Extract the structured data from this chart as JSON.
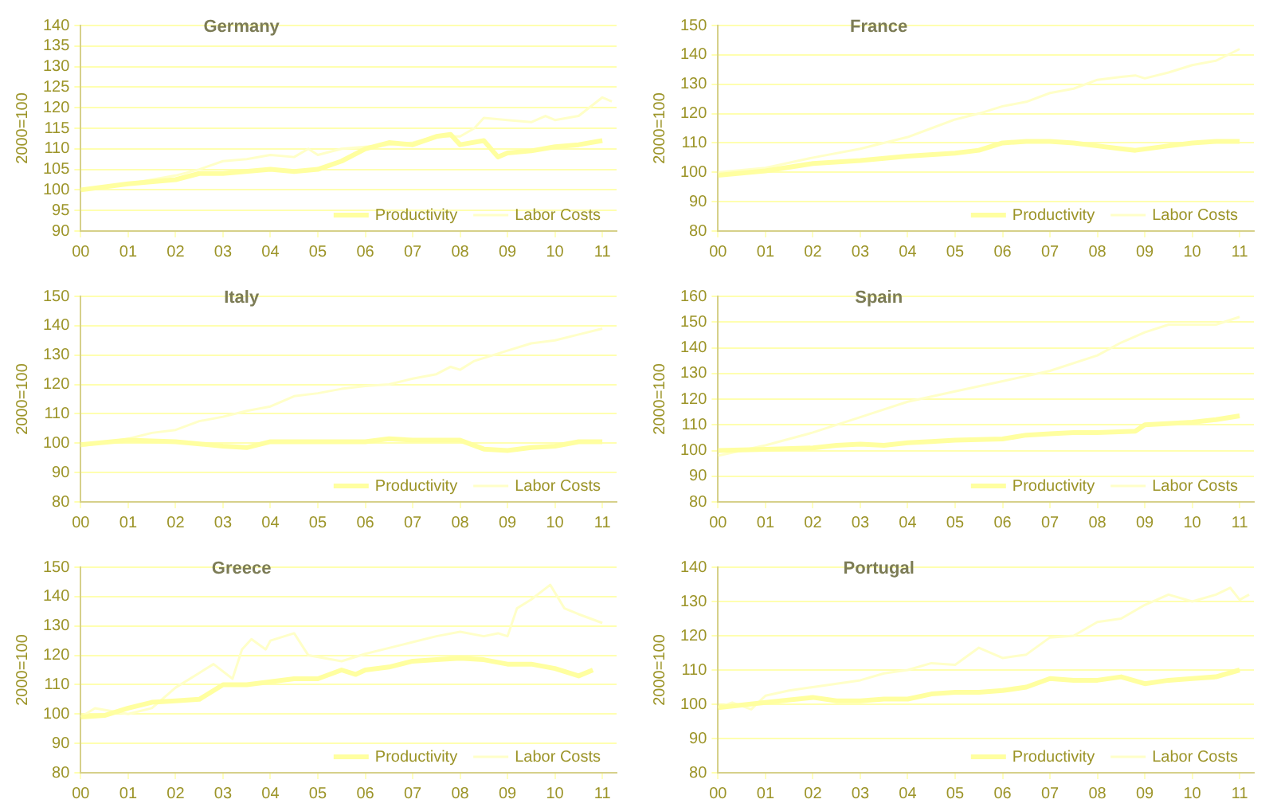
{
  "chart_data": [
    {
      "type": "line",
      "title": "Germany",
      "ylabel": "2000=100",
      "xlim": [
        0,
        11.3
      ],
      "ylim": [
        90,
        140
      ],
      "yticks": [
        90,
        95,
        100,
        105,
        110,
        115,
        120,
        125,
        130,
        135,
        140
      ],
      "xticks": [
        {
          "value": 0,
          "label": "00"
        },
        {
          "value": 1,
          "label": "01"
        },
        {
          "value": 2,
          "label": "02"
        },
        {
          "value": 3,
          "label": "03"
        },
        {
          "value": 4,
          "label": "04"
        },
        {
          "value": 5,
          "label": "05"
        },
        {
          "value": 6,
          "label": "06"
        },
        {
          "value": 7,
          "label": "07"
        },
        {
          "value": 8,
          "label": "08"
        },
        {
          "value": 9,
          "label": "09"
        },
        {
          "value": 10,
          "label": "10"
        },
        {
          "value": 11,
          "label": "11"
        }
      ],
      "grid": "y",
      "legend": "bottom right",
      "series": [
        {
          "name": "Productivity",
          "color": "#ffffa0",
          "x": [
            0,
            1,
            2,
            2.5,
            3,
            4,
            4.5,
            5,
            5.5,
            6,
            6.5,
            7,
            7.5,
            7.8,
            8,
            8.5,
            8.8,
            9,
            9.5,
            10,
            10.5,
            11
          ],
          "values": [
            100,
            101.5,
            102.5,
            104,
            104,
            105,
            104.5,
            105,
            107,
            110,
            111.5,
            111,
            113,
            113.5,
            111,
            112,
            108,
            109,
            109.5,
            110.5,
            111,
            112
          ]
        },
        {
          "name": "Labor Costs",
          "color": "#ffffc8",
          "x": [
            0,
            1,
            2,
            2.5,
            3,
            3.5,
            4,
            4.5,
            4.8,
            5,
            5.5,
            6,
            6.5,
            7,
            7.5,
            8,
            8.3,
            8.5,
            9,
            9.5,
            9.8,
            10,
            10.5,
            11,
            11.2
          ],
          "values": [
            100,
            101.5,
            103.5,
            105,
            107,
            107.5,
            108.5,
            108,
            110,
            108.5,
            110,
            110.5,
            111,
            111.5,
            113,
            113,
            115,
            117.5,
            117,
            116.5,
            118,
            117,
            118,
            122.5,
            121.5
          ]
        }
      ]
    },
    {
      "type": "line",
      "title": "France",
      "ylabel": "2000=100",
      "xlim": [
        0,
        11.3
      ],
      "ylim": [
        80,
        150
      ],
      "yticks": [
        80,
        90,
        100,
        110,
        120,
        130,
        140,
        150
      ],
      "xticks": [
        {
          "value": 0,
          "label": "00"
        },
        {
          "value": 1,
          "label": "01"
        },
        {
          "value": 2,
          "label": "02"
        },
        {
          "value": 3,
          "label": "03"
        },
        {
          "value": 4,
          "label": "04"
        },
        {
          "value": 5,
          "label": "05"
        },
        {
          "value": 6,
          "label": "06"
        },
        {
          "value": 7,
          "label": "07"
        },
        {
          "value": 8,
          "label": "08"
        },
        {
          "value": 9,
          "label": "09"
        },
        {
          "value": 10,
          "label": "10"
        },
        {
          "value": 11,
          "label": "11"
        }
      ],
      "grid": "y",
      "legend": "bottom right",
      "series": [
        {
          "name": "Productivity",
          "color": "#ffffa0",
          "x": [
            0,
            1,
            2,
            3,
            4,
            5,
            5.5,
            6,
            6.5,
            7,
            7.5,
            8,
            8.5,
            8.8,
            9.5,
            10,
            10.5,
            11
          ],
          "values": [
            99,
            100.5,
            103,
            104,
            105.5,
            106.5,
            107.5,
            110,
            110.5,
            110.5,
            110,
            109,
            108,
            107.5,
            109,
            110,
            110.5,
            110.5
          ]
        },
        {
          "name": "Labor Costs",
          "color": "#ffffc8",
          "x": [
            0,
            1,
            2,
            3,
            4,
            4.5,
            5,
            5.5,
            6,
            6.5,
            7,
            7.5,
            8,
            8.5,
            8.8,
            9,
            9.5,
            10,
            10.5,
            11
          ],
          "values": [
            100,
            101.5,
            105,
            108,
            112,
            115,
            118,
            120,
            122.5,
            124,
            127,
            128.5,
            131.5,
            132.5,
            133,
            132,
            134,
            136.5,
            138,
            142
          ]
        }
      ]
    },
    {
      "type": "line",
      "title": "Italy",
      "ylabel": "2000=100",
      "xlim": [
        0,
        11.3
      ],
      "ylim": [
        80,
        150
      ],
      "yticks": [
        80,
        90,
        100,
        110,
        120,
        130,
        140,
        150
      ],
      "xticks": [
        {
          "value": 0,
          "label": "00"
        },
        {
          "value": 1,
          "label": "01"
        },
        {
          "value": 2,
          "label": "02"
        },
        {
          "value": 3,
          "label": "03"
        },
        {
          "value": 4,
          "label": "04"
        },
        {
          "value": 5,
          "label": "05"
        },
        {
          "value": 6,
          "label": "06"
        },
        {
          "value": 7,
          "label": "07"
        },
        {
          "value": 8,
          "label": "08"
        },
        {
          "value": 9,
          "label": "09"
        },
        {
          "value": 10,
          "label": "10"
        },
        {
          "value": 11,
          "label": "11"
        }
      ],
      "grid": "y",
      "legend": "bottom right",
      "series": [
        {
          "name": "Productivity",
          "color": "#ffffa0",
          "x": [
            0,
            1,
            2,
            3,
            3.5,
            4,
            5,
            6,
            6.5,
            7,
            8,
            8.5,
            9,
            9.5,
            10,
            10.5,
            11
          ],
          "values": [
            99.5,
            101,
            100.5,
            99,
            98.5,
            100.5,
            100.5,
            100.5,
            101.5,
            101,
            101,
            98,
            97.5,
            98.5,
            99,
            100.5,
            100.5
          ]
        },
        {
          "name": "Labor Costs",
          "color": "#ffffc8",
          "x": [
            0,
            1,
            1.5,
            2,
            2.5,
            3,
            3.5,
            4,
            4.5,
            5,
            5.5,
            6,
            6.5,
            7,
            7.5,
            7.8,
            8,
            8.3,
            9,
            9.5,
            10,
            10.5,
            11
          ],
          "values": [
            99,
            101.5,
            103.5,
            104.5,
            107.5,
            109,
            111,
            112.5,
            116,
            117,
            118.5,
            119.5,
            120,
            122,
            123.5,
            126,
            125,
            128,
            131.5,
            134,
            135,
            137,
            139
          ]
        }
      ]
    },
    {
      "type": "line",
      "title": "Spain",
      "ylabel": "2000=100",
      "xlim": [
        0,
        11.3
      ],
      "ylim": [
        80,
        160
      ],
      "yticks": [
        80,
        90,
        100,
        110,
        120,
        130,
        140,
        150,
        160
      ],
      "xticks": [
        {
          "value": 0,
          "label": "00"
        },
        {
          "value": 1,
          "label": "01"
        },
        {
          "value": 2,
          "label": "02"
        },
        {
          "value": 3,
          "label": "03"
        },
        {
          "value": 4,
          "label": "04"
        },
        {
          "value": 5,
          "label": "05"
        },
        {
          "value": 6,
          "label": "06"
        },
        {
          "value": 7,
          "label": "07"
        },
        {
          "value": 8,
          "label": "08"
        },
        {
          "value": 9,
          "label": "09"
        },
        {
          "value": 10,
          "label": "10"
        },
        {
          "value": 11,
          "label": "11"
        }
      ],
      "grid": "y",
      "legend": "bottom right",
      "series": [
        {
          "name": "Productivity",
          "color": "#ffffa0",
          "x": [
            0,
            1,
            2,
            2.5,
            3,
            3.5,
            4,
            4.5,
            5,
            6,
            6.5,
            7,
            7.5,
            8,
            8.8,
            9,
            10,
            10.5,
            11
          ],
          "values": [
            100,
            100.5,
            101,
            102,
            102.5,
            102,
            103,
            103.5,
            104,
            104.5,
            106,
            106.5,
            107,
            107,
            107.5,
            110,
            111,
            112,
            113.5
          ]
        },
        {
          "name": "Labor Costs",
          "color": "#ffffc8",
          "x": [
            0,
            1,
            2,
            3,
            4,
            5,
            6,
            7,
            8,
            8.5,
            9,
            9.5,
            10,
            10.5,
            11
          ],
          "values": [
            98,
            102,
            107,
            113,
            119,
            123,
            127,
            131,
            137,
            142,
            146,
            149,
            149,
            149,
            152
          ]
        }
      ]
    },
    {
      "type": "line",
      "title": "Greece",
      "ylabel": "2000=100",
      "xlim": [
        0,
        11.3
      ],
      "ylim": [
        80,
        150
      ],
      "yticks": [
        80,
        90,
        100,
        110,
        120,
        130,
        140,
        150
      ],
      "xticks": [
        {
          "value": 0,
          "label": "00"
        },
        {
          "value": 1,
          "label": "01"
        },
        {
          "value": 2,
          "label": "02"
        },
        {
          "value": 3,
          "label": "03"
        },
        {
          "value": 4,
          "label": "04"
        },
        {
          "value": 5,
          "label": "05"
        },
        {
          "value": 6,
          "label": "06"
        },
        {
          "value": 7,
          "label": "07"
        },
        {
          "value": 8,
          "label": "08"
        },
        {
          "value": 9,
          "label": "09"
        },
        {
          "value": 10,
          "label": "10"
        },
        {
          "value": 11,
          "label": "11"
        }
      ],
      "grid": "y",
      "legend": "bottom right",
      "series": [
        {
          "name": "Productivity",
          "color": "#ffffa0",
          "x": [
            0,
            0.5,
            1,
            1.5,
            2,
            2.5,
            3,
            3.5,
            4,
            4.5,
            5,
            5.5,
            5.8,
            6,
            6.5,
            7,
            7.5,
            8,
            8.5,
            9,
            9.5,
            10,
            10.5,
            10.8
          ],
          "values": [
            99,
            99.5,
            102,
            104,
            104.5,
            105,
            110,
            110,
            111,
            112,
            112,
            115,
            113.5,
            115,
            116,
            118,
            118.5,
            119,
            118.5,
            117,
            117,
            115.5,
            113,
            115
          ]
        },
        {
          "name": "Labor Costs",
          "color": "#ffffc8",
          "x": [
            0,
            0.3,
            1,
            1.5,
            2,
            2.5,
            2.8,
            3.2,
            3.4,
            3.6,
            3.9,
            4,
            4.5,
            4.8,
            5.5,
            6,
            6.5,
            7,
            7.5,
            8,
            8.5,
            8.8,
            9,
            9.2,
            9.5,
            9.9,
            10.2,
            10.5,
            11
          ],
          "values": [
            99,
            102,
            100,
            102,
            109,
            114,
            117,
            112,
            122,
            125.5,
            122,
            125,
            127.5,
            120,
            118,
            120.5,
            122.5,
            124.5,
            126.5,
            128,
            126.5,
            127.5,
            126.5,
            136,
            139,
            144,
            136,
            134,
            131
          ]
        }
      ]
    },
    {
      "type": "line",
      "title": "Portugal",
      "ylabel": "2000=100",
      "xlim": [
        0,
        11.3
      ],
      "ylim": [
        80,
        140
      ],
      "yticks": [
        80,
        90,
        100,
        110,
        120,
        130,
        140
      ],
      "xticks": [
        {
          "value": 0,
          "label": "00"
        },
        {
          "value": 1,
          "label": "01"
        },
        {
          "value": 2,
          "label": "02"
        },
        {
          "value": 3,
          "label": "03"
        },
        {
          "value": 4,
          "label": "04"
        },
        {
          "value": 5,
          "label": "05"
        },
        {
          "value": 6,
          "label": "06"
        },
        {
          "value": 7,
          "label": "07"
        },
        {
          "value": 8,
          "label": "08"
        },
        {
          "value": 9,
          "label": "09"
        },
        {
          "value": 10,
          "label": "10"
        },
        {
          "value": 11,
          "label": "11"
        }
      ],
      "grid": "y",
      "legend": "bottom right",
      "series": [
        {
          "name": "Productivity",
          "color": "#ffffa0",
          "x": [
            0,
            1,
            2,
            2.5,
            3,
            3.5,
            4,
            4.5,
            5,
            5.5,
            6,
            6.5,
            7,
            7.5,
            8,
            8.5,
            9,
            9.5,
            10,
            10.5,
            11
          ],
          "values": [
            99,
            100.5,
            102,
            101,
            101,
            101.5,
            101.5,
            103,
            103.5,
            103.5,
            104,
            105,
            107.5,
            107,
            107,
            108,
            106,
            107,
            107.5,
            108,
            110
          ]
        },
        {
          "name": "Labor Costs",
          "color": "#ffffc8",
          "x": [
            0,
            0.3,
            0.7,
            1,
            1.5,
            2,
            2.5,
            3,
            3.5,
            4,
            4.5,
            5,
            5.5,
            6,
            6.5,
            7,
            7.5,
            8,
            8.5,
            9,
            9.5,
            10,
            10.5,
            10.8,
            11,
            11.2
          ],
          "values": [
            99,
            100.5,
            98.5,
            102.5,
            104,
            105,
            106,
            107,
            109,
            110,
            112,
            111.5,
            116.5,
            113.5,
            114.5,
            119.5,
            120,
            124,
            125,
            129,
            132,
            130,
            132,
            134,
            130.5,
            132
          ]
        }
      ]
    }
  ]
}
